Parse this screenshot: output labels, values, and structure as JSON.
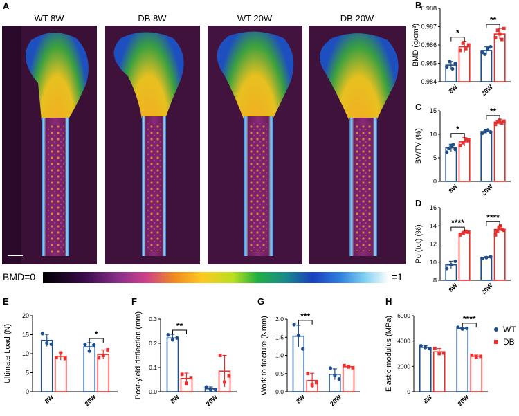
{
  "colors": {
    "wt": "#1f4e8c",
    "db": "#e8312f"
  },
  "ct_panel": {
    "letter": "A",
    "images": [
      {
        "label": "WT 8W"
      },
      {
        "label": "DB 8W"
      },
      {
        "label": "WT 20W"
      },
      {
        "label": "DB 20W"
      }
    ],
    "colorbar": {
      "min_label": "BMD=0",
      "max_label": "=1"
    }
  },
  "chart_data": [
    {
      "id": "B",
      "type": "bar",
      "letter": "B",
      "ylabel": "BMD (g/cm³)",
      "categories": [
        "8W",
        "20W"
      ],
      "ylim": [
        0.984,
        0.988
      ],
      "yticks": [
        0.984,
        0.985,
        0.986,
        0.987,
        0.988
      ],
      "ytick_labels": [
        "0.984",
        "0.985",
        "0.986",
        "0.987",
        "0.988"
      ],
      "series": [
        {
          "name": "WT",
          "values": [
            0.9849,
            0.9857
          ],
          "err": [
            0.0002,
            0.0002
          ],
          "points": [
            [
              0.9848,
              0.9851,
              0.9847,
              0.985
            ],
            [
              0.9856,
              0.9855,
              0.9858,
              0.9859
            ]
          ]
        },
        {
          "name": "DB",
          "values": [
            0.9859,
            0.9866
          ],
          "err": [
            0.0003,
            0.0003
          ],
          "points": [
            [
              0.9857,
              0.9861,
              0.9858,
              0.986
            ],
            [
              0.9864,
              0.9868,
              0.9866,
              0.9863,
              0.9869
            ]
          ]
        }
      ],
      "significance": [
        {
          "category": "8W",
          "label": "*"
        },
        {
          "category": "20W",
          "label": "**"
        }
      ]
    },
    {
      "id": "C",
      "type": "bar",
      "letter": "C",
      "ylabel": "BV/TV (%)",
      "categories": [
        "8W",
        "20W"
      ],
      "ylim": [
        0,
        15
      ],
      "yticks": [
        0,
        5,
        10,
        15
      ],
      "ytick_labels": [
        "0",
        "5",
        "10",
        "15"
      ],
      "series": [
        {
          "name": "WT",
          "values": [
            7.1,
            10.6
          ],
          "err": [
            0.8,
            0.4
          ],
          "points": [
            [
              6.2,
              7.0,
              7.5,
              7.8,
              6.8
            ],
            [
              10.2,
              10.6,
              10.9,
              10.5
            ]
          ]
        },
        {
          "name": "DB",
          "values": [
            8.4,
            12.6
          ],
          "err": [
            0.9,
            0.5
          ],
          "points": [
            [
              7.6,
              8.2,
              9.0,
              8.8
            ],
            [
              12.1,
              12.6,
              13.0,
              12.4,
              12.8
            ]
          ]
        }
      ],
      "significance": [
        {
          "category": "8W",
          "label": "*"
        },
        {
          "category": "20W",
          "label": "**"
        }
      ]
    },
    {
      "id": "D",
      "type": "bar",
      "letter": "D",
      "ylabel": "Po (tot) (%)",
      "categories": [
        "8W",
        "20W"
      ],
      "ylim": [
        8,
        16
      ],
      "yticks": [
        8,
        10,
        12,
        14,
        16
      ],
      "ytick_labels": [
        "8",
        "10",
        "12",
        "14",
        "16"
      ],
      "series": [
        {
          "name": "WT",
          "values": [
            9.7,
            10.5
          ],
          "err": [
            0.4,
            0.1
          ],
          "points": [
            [
              9.3,
              9.7,
              10.1
            ],
            [
              10.4,
              10.5,
              10.6
            ]
          ]
        },
        {
          "name": "DB",
          "values": [
            13.2,
            13.6
          ],
          "err": [
            0.2,
            0.4
          ],
          "points": [
            [
              13.0,
              13.2,
              13.4,
              13.3
            ],
            [
              13.0,
              13.4,
              13.8,
              14.0,
              13.6,
              13.5
            ]
          ]
        }
      ],
      "significance": [
        {
          "category": "8W",
          "label": "****"
        },
        {
          "category": "20W",
          "label": "****"
        }
      ]
    },
    {
      "id": "E",
      "type": "bar",
      "letter": "E",
      "ylabel": "Ultimate Load (N)",
      "categories": [
        "8W",
        "20W"
      ],
      "ylim": [
        0,
        20
      ],
      "yticks": [
        0,
        5,
        10,
        15,
        20
      ],
      "ytick_labels": [
        "0",
        "5",
        "10",
        "15",
        "20"
      ],
      "series": [
        {
          "name": "WT",
          "values": [
            13.5,
            11.8
          ],
          "err": [
            1.6,
            1.1
          ],
          "points": [
            [
              15.3,
              12.8,
              12.5
            ],
            [
              12.4,
              10.7,
              12.3
            ]
          ]
        },
        {
          "name": "DB",
          "values": [
            9.3,
            9.8
          ],
          "err": [
            1.0,
            1.2
          ],
          "points": [
            [
              9.0,
              10.2,
              8.7
            ],
            [
              8.9,
              9.5,
              11.0
            ]
          ]
        }
      ],
      "significance": [
        {
          "category": "20W",
          "label": "*"
        }
      ]
    },
    {
      "id": "F",
      "type": "bar",
      "letter": "F",
      "ylabel": "Post-yield deflection (mm)",
      "categories": [
        "8W",
        "20W"
      ],
      "ylim": [
        0,
        0.3
      ],
      "yticks": [
        0,
        0.1,
        0.2,
        0.3
      ],
      "ytick_labels": [
        "0.0",
        "0.1",
        "0.2",
        "0.3"
      ],
      "series": [
        {
          "name": "WT",
          "values": [
            0.222,
            0.012
          ],
          "err": [
            0.015,
            0.008
          ],
          "points": [
            [
              0.235,
              0.215,
              0.222
            ],
            [
              0.02,
              0.008,
              0.01
            ]
          ]
        },
        {
          "name": "DB",
          "values": [
            0.055,
            0.085
          ],
          "err": [
            0.022,
            0.065
          ],
          "points": [
            [
              0.072,
              0.035,
              0.058
            ],
            [
              0.15,
              0.04,
              0.065
            ]
          ]
        }
      ],
      "significance": [
        {
          "category": "8W",
          "label": "**"
        }
      ]
    },
    {
      "id": "G",
      "type": "bar",
      "letter": "G",
      "ylabel": "Work to fracture (Nmm)",
      "categories": [
        "8W",
        "20W"
      ],
      "ylim": [
        0,
        2
      ],
      "yticks": [
        0,
        0.5,
        1.0,
        1.5,
        2.0
      ],
      "ytick_labels": [
        "0.0",
        "0.5",
        "1.0",
        "1.5",
        "2.0"
      ],
      "series": [
        {
          "name": "WT",
          "values": [
            1.53,
            0.48
          ],
          "err": [
            0.3,
            0.15
          ],
          "points": [
            [
              1.85,
              1.55,
              1.18
            ],
            [
              0.65,
              0.45,
              0.35
            ]
          ]
        },
        {
          "name": "DB",
          "values": [
            0.31,
            0.69
          ],
          "err": [
            0.2,
            0.04
          ],
          "points": [
            [
              0.5,
              0.18,
              0.25
            ],
            [
              0.72,
              0.68,
              0.66
            ]
          ]
        }
      ],
      "significance": [
        {
          "category": "8W",
          "label": "***"
        }
      ]
    },
    {
      "id": "H",
      "type": "bar",
      "letter": "H",
      "ylabel": "Elastic modulus (MPa)",
      "categories": [
        "8W",
        "20W"
      ],
      "ylim": [
        0,
        6000
      ],
      "yticks": [
        0,
        2000,
        4000,
        6000
      ],
      "ytick_labels": [
        "0",
        "2000",
        "4000",
        "6000"
      ],
      "series": [
        {
          "name": "WT",
          "values": [
            3500,
            5000
          ],
          "err": [
            120,
            80
          ],
          "points": [
            [
              3620,
              3480,
              3400
            ],
            [
              5080,
              4950,
              5000
            ]
          ]
        },
        {
          "name": "DB",
          "values": [
            3150,
            2800
          ],
          "err": [
            250,
            90
          ],
          "points": [
            [
              3420,
              3000,
              3050
            ],
            [
              2870,
              2720,
              2790
            ]
          ]
        }
      ],
      "significance": [
        {
          "category": "20W",
          "label": "****"
        }
      ],
      "legend": {
        "position": "top-right",
        "entries": [
          "WT",
          "DB"
        ]
      }
    }
  ]
}
